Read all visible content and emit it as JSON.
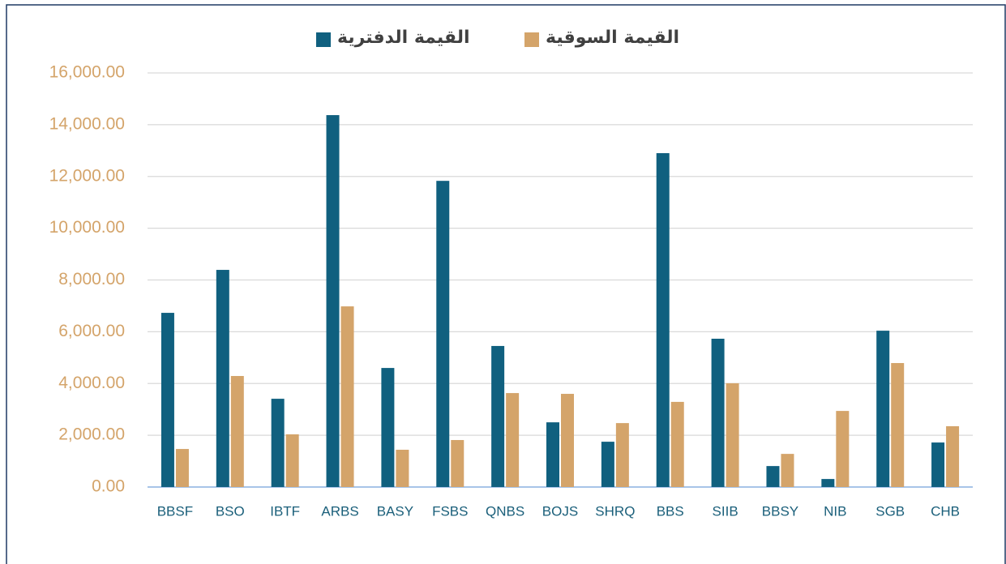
{
  "chart_data": {
    "type": "bar",
    "categories": [
      "BBSF",
      "BSO",
      "IBTF",
      "ARBS",
      "BASY",
      "FSBS",
      "QNBS",
      "BOJS",
      "SHRQ",
      "BBS",
      "SIIB",
      "BBSY",
      "NIB",
      "SGB",
      "CHB"
    ],
    "series": [
      {
        "name": "القيمة الدفترية",
        "color": "#10607f",
        "values": [
          6730,
          8390,
          3410,
          14370,
          4600,
          11830,
          5450,
          2500,
          1750,
          12900,
          5730,
          810,
          310,
          6040,
          1720
        ]
      },
      {
        "name": "القيمة السوقية",
        "color": "#d4a46a",
        "values": [
          1470,
          4290,
          2035,
          6980,
          1440,
          1815,
          3630,
          3600,
          2470,
          3290,
          4010,
          1280,
          2940,
          4790,
          2350
        ]
      }
    ],
    "ylim": [
      0,
      16000
    ],
    "yticks": [
      {
        "value": 0,
        "label": "0.00"
      },
      {
        "value": 2000,
        "label": "2,000.00"
      },
      {
        "value": 4000,
        "label": "4,000.00"
      },
      {
        "value": 6000,
        "label": "6,000.00"
      },
      {
        "value": 8000,
        "label": "8,000.00"
      },
      {
        "value": 10000,
        "label": "10,000.00"
      },
      {
        "value": 12000,
        "label": "12,000.00"
      },
      {
        "value": 14000,
        "label": "14,000.00"
      },
      {
        "value": 16000,
        "label": "16,000.00"
      }
    ],
    "grid": true
  }
}
